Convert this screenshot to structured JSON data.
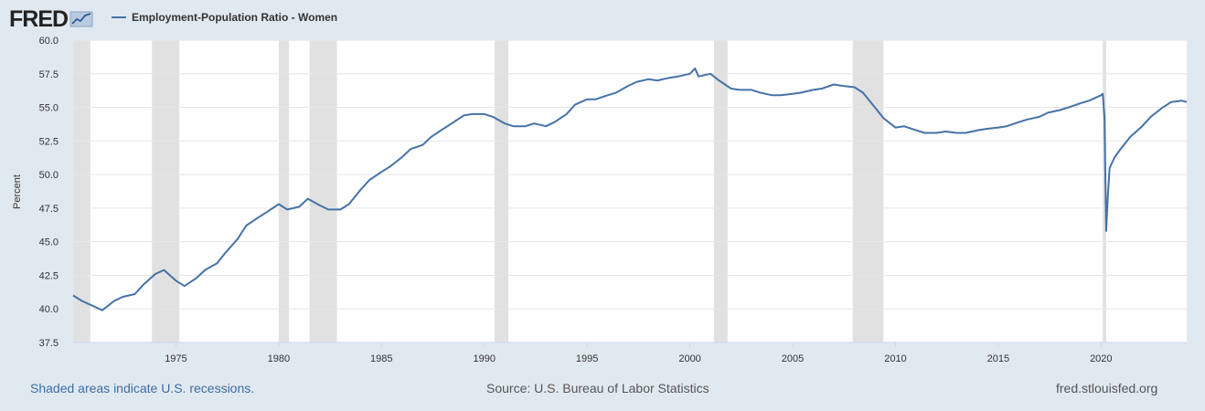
{
  "brand": {
    "logo_text": "FRED",
    "logo_icon": "chart-line-icon"
  },
  "legend": {
    "series_label": "Employment-Population Ratio - Women",
    "color": "#4572a7"
  },
  "footer": {
    "note": "Shaded areas indicate U.S. recessions.",
    "source": "Source: U.S. Bureau of Labor Statistics",
    "url": "fred.stlouisfed.org"
  },
  "colors": {
    "background": "#e1e9f0",
    "plot": "#ffffff",
    "line": "#4572a7",
    "recession": "#e1e1e1",
    "grid": "#e6e6e6"
  },
  "chart_data": {
    "type": "line",
    "title": "",
    "xlabel": "",
    "ylabel": "Percent",
    "xlim": [
      "1970-01",
      "2024-03"
    ],
    "ylim": [
      37.5,
      60.0
    ],
    "y_ticks": [
      "37.5",
      "40.0",
      "42.5",
      "45.0",
      "47.5",
      "50.0",
      "52.5",
      "55.0",
      "57.5",
      "60.0"
    ],
    "x_ticks": [
      "1975",
      "1980",
      "1985",
      "1990",
      "1995",
      "2000",
      "2005",
      "2010",
      "2015",
      "2020"
    ],
    "grid": true,
    "legend_position": "top-left",
    "recessions": [
      [
        "1970-01",
        "1970-11"
      ],
      [
        "1973-11",
        "1975-03"
      ],
      [
        "1980-01",
        "1980-07"
      ],
      [
        "1981-07",
        "1982-11"
      ],
      [
        "1990-07",
        "1991-03"
      ],
      [
        "2001-03",
        "2001-11"
      ],
      [
        "2007-12",
        "2009-06"
      ],
      [
        "2020-02",
        "2020-04"
      ]
    ],
    "series": [
      {
        "name": "Employment-Population Ratio - Women",
        "x": [
          "1970-01",
          "1970-06",
          "1971-01",
          "1971-06",
          "1972-01",
          "1972-06",
          "1973-01",
          "1973-06",
          "1974-01",
          "1974-06",
          "1975-01",
          "1975-06",
          "1976-01",
          "1976-06",
          "1977-01",
          "1977-06",
          "1978-01",
          "1978-06",
          "1979-01",
          "1979-06",
          "1980-01",
          "1980-06",
          "1981-01",
          "1981-06",
          "1982-01",
          "1982-06",
          "1983-01",
          "1983-06",
          "1984-01",
          "1984-06",
          "1985-01",
          "1985-06",
          "1986-01",
          "1986-06",
          "1987-01",
          "1987-06",
          "1988-01",
          "1988-06",
          "1989-01",
          "1989-06",
          "1990-01",
          "1990-06",
          "1991-01",
          "1991-06",
          "1992-01",
          "1992-06",
          "1993-01",
          "1993-06",
          "1994-01",
          "1994-06",
          "1995-01",
          "1995-06",
          "1996-01",
          "1996-06",
          "1997-01",
          "1997-06",
          "1998-01",
          "1998-06",
          "1999-01",
          "1999-06",
          "2000-01",
          "2000-04",
          "2000-06",
          "2001-01",
          "2001-06",
          "2002-01",
          "2002-06",
          "2003-01",
          "2003-06",
          "2004-01",
          "2004-06",
          "2005-01",
          "2005-06",
          "2006-01",
          "2006-06",
          "2007-01",
          "2007-06",
          "2008-01",
          "2008-06",
          "2009-01",
          "2009-06",
          "2010-01",
          "2010-06",
          "2011-01",
          "2011-06",
          "2012-01",
          "2012-06",
          "2013-01",
          "2013-06",
          "2014-01",
          "2014-06",
          "2015-01",
          "2015-06",
          "2016-01",
          "2016-06",
          "2017-01",
          "2017-06",
          "2018-01",
          "2018-06",
          "2019-01",
          "2019-06",
          "2020-01",
          "2020-02",
          "2020-03",
          "2020-04",
          "2020-05",
          "2020-06",
          "2020-09",
          "2021-01",
          "2021-06",
          "2022-01",
          "2022-06",
          "2023-01",
          "2023-06",
          "2023-12",
          "2024-03"
        ],
        "values": [
          41.0,
          40.6,
          40.2,
          39.9,
          40.6,
          40.9,
          41.1,
          41.8,
          42.6,
          42.9,
          42.1,
          41.7,
          42.3,
          42.9,
          43.4,
          44.2,
          45.2,
          46.2,
          46.8,
          47.2,
          47.8,
          47.4,
          47.6,
          48.2,
          47.7,
          47.4,
          47.4,
          47.8,
          48.9,
          49.6,
          50.2,
          50.6,
          51.3,
          51.9,
          52.2,
          52.8,
          53.4,
          53.8,
          54.4,
          54.5,
          54.5,
          54.3,
          53.8,
          53.6,
          53.6,
          53.8,
          53.6,
          53.9,
          54.5,
          55.2,
          55.6,
          55.6,
          55.9,
          56.1,
          56.6,
          56.9,
          57.1,
          57.0,
          57.2,
          57.3,
          57.5,
          57.9,
          57.3,
          57.5,
          57.0,
          56.4,
          56.3,
          56.3,
          56.1,
          55.9,
          55.9,
          56.0,
          56.1,
          56.3,
          56.4,
          56.7,
          56.6,
          56.5,
          56.1,
          55.0,
          54.2,
          53.5,
          53.6,
          53.3,
          53.1,
          53.1,
          53.2,
          53.1,
          53.1,
          53.3,
          53.4,
          53.5,
          53.6,
          53.9,
          54.1,
          54.3,
          54.6,
          54.8,
          55.0,
          55.3,
          55.5,
          55.9,
          56.0,
          54.2,
          45.8,
          48.5,
          50.5,
          51.3,
          52.0,
          52.8,
          53.6,
          54.3,
          55.0,
          55.4,
          55.5,
          55.4
        ]
      }
    ]
  }
}
